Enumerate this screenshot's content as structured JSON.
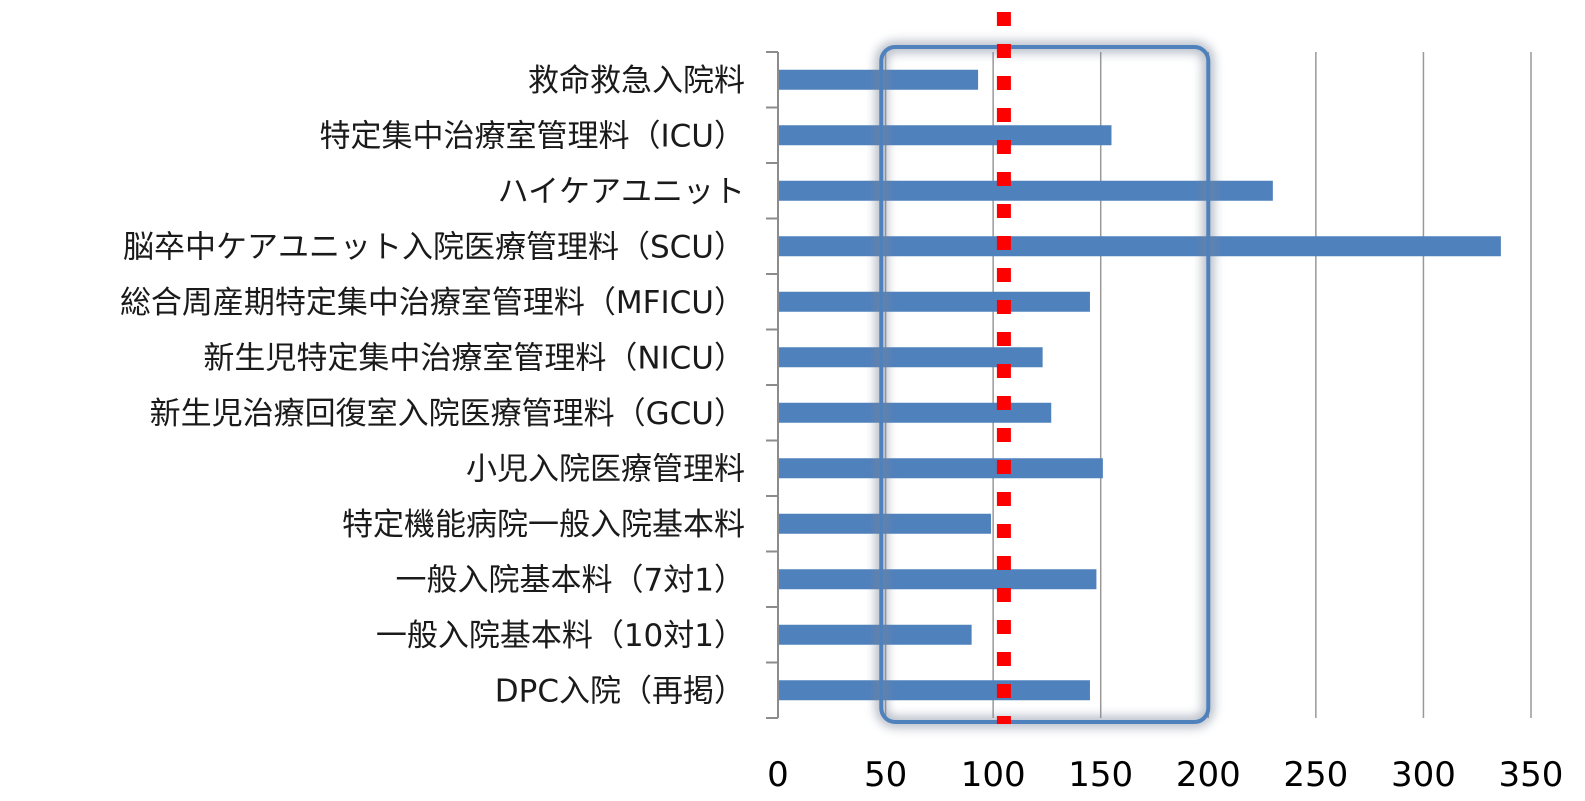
{
  "chart_data": {
    "type": "bar",
    "orientation": "horizontal",
    "categories": [
      "救命救急入院料",
      "特定集中治療室管理料（ICU）",
      "ハイケアユニット",
      "脳卒中ケアユニット入院医療管理料（SCU）",
      "総合周産期特定集中治療室管理料（MFICU）",
      "新生児特定集中治療室管理料（NICU）",
      "新生児治療回復室入院医療管理料（GCU）",
      "小児入院医療管理料",
      "特定機能病院一般入院基本料",
      "一般入院基本料（7対1）",
      "一般入院基本料（10対1）",
      "DPC入院（再掲）"
    ],
    "values": [
      93,
      155,
      230,
      336,
      145,
      123,
      127,
      151,
      99,
      148,
      90,
      145
    ],
    "xlim": [
      0,
      350
    ],
    "xticks": [
      0,
      50,
      100,
      150,
      200,
      250,
      300,
      350
    ],
    "grid": true,
    "reference_line": {
      "value": 105,
      "style": "dotted",
      "color": "#ff0000"
    },
    "highlight_range": {
      "from": 48,
      "to": 200,
      "color": "#4f81bd"
    },
    "bar_color": "#4f81bd",
    "gridline_color": "#999999"
  }
}
